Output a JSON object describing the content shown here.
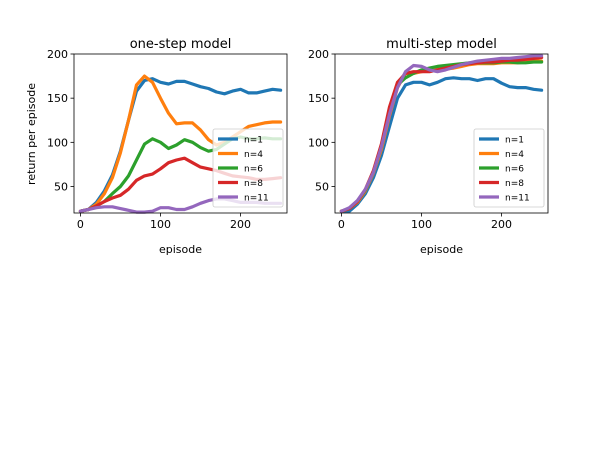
{
  "chart_data": [
    {
      "type": "line",
      "title": "one-step model",
      "xlabel": "episode",
      "ylabel": "return per episode",
      "xlim": [
        -8,
        258
      ],
      "ylim": [
        20,
        200
      ],
      "xticks": [
        0,
        100,
        200
      ],
      "yticks": [
        50,
        100,
        150,
        200
      ],
      "grid": false,
      "legend_position": "lower-right",
      "series": [
        {
          "name": "n=1",
          "color": "#1f77b4",
          "x": [
            0,
            10,
            20,
            30,
            40,
            50,
            60,
            70,
            80,
            90,
            100,
            110,
            120,
            130,
            140,
            150,
            160,
            170,
            180,
            190,
            200,
            210,
            220,
            230,
            240,
            250
          ],
          "y": [
            22,
            24,
            32,
            45,
            63,
            90,
            125,
            158,
            170,
            172,
            168,
            166,
            169,
            169,
            166,
            163,
            161,
            157,
            155,
            158,
            160,
            156,
            156,
            158,
            160,
            159
          ]
        },
        {
          "name": "n=4",
          "color": "#ff7f0e",
          "x": [
            0,
            10,
            20,
            30,
            40,
            50,
            60,
            70,
            80,
            90,
            100,
            110,
            120,
            130,
            140,
            150,
            160,
            170,
            180,
            190,
            200,
            210,
            220,
            230,
            240,
            250
          ],
          "y": [
            22,
            24,
            30,
            42,
            60,
            88,
            125,
            165,
            175,
            168,
            150,
            133,
            121,
            122,
            122,
            114,
            103,
            97,
            100,
            106,
            112,
            118,
            120,
            122,
            123,
            123
          ]
        },
        {
          "name": "n=6",
          "color": "#2ca02c",
          "x": [
            0,
            10,
            20,
            30,
            40,
            50,
            60,
            70,
            80,
            90,
            100,
            110,
            120,
            130,
            140,
            150,
            160,
            170,
            180,
            190,
            200,
            210,
            220,
            230,
            240,
            250
          ],
          "y": [
            22,
            24,
            28,
            33,
            42,
            50,
            62,
            80,
            98,
            104,
            100,
            93,
            97,
            103,
            100,
            94,
            90,
            92,
            98,
            104,
            106,
            104,
            104,
            105,
            104,
            104
          ]
        },
        {
          "name": "n=8",
          "color": "#d62728",
          "x": [
            0,
            10,
            20,
            30,
            40,
            50,
            60,
            70,
            80,
            90,
            100,
            110,
            120,
            130,
            140,
            150,
            160,
            170,
            180,
            190,
            200,
            210,
            220,
            230,
            240,
            250
          ],
          "y": [
            22,
            24,
            28,
            33,
            37,
            40,
            47,
            57,
            62,
            64,
            70,
            77,
            80,
            82,
            77,
            72,
            70,
            68,
            65,
            62,
            61,
            60,
            58,
            58,
            59,
            60
          ]
        },
        {
          "name": "n=11",
          "color": "#9467bd",
          "x": [
            0,
            10,
            20,
            30,
            40,
            50,
            60,
            70,
            80,
            90,
            100,
            110,
            120,
            130,
            140,
            150,
            160,
            170,
            180,
            190,
            200,
            210,
            220,
            230,
            240,
            250
          ],
          "y": [
            22,
            24,
            26,
            27,
            27,
            25,
            23,
            21,
            21,
            22,
            26,
            26,
            24,
            24,
            27,
            31,
            34,
            36,
            36,
            34,
            32,
            32,
            32,
            31,
            31,
            31
          ]
        }
      ]
    },
    {
      "type": "line",
      "title": "multi-step model",
      "xlabel": "episode",
      "ylabel": "",
      "xlim": [
        -8,
        258
      ],
      "ylim": [
        20,
        200
      ],
      "xticks": [
        0,
        100,
        200
      ],
      "yticks": [
        50,
        100,
        150,
        200
      ],
      "grid": false,
      "legend_position": "lower-right",
      "series": [
        {
          "name": "n=1",
          "color": "#1f77b4",
          "x": [
            0,
            10,
            20,
            30,
            40,
            50,
            60,
            70,
            80,
            90,
            100,
            110,
            120,
            130,
            140,
            150,
            160,
            170,
            180,
            190,
            200,
            210,
            220,
            230,
            240,
            250
          ],
          "y": [
            22,
            22,
            30,
            42,
            60,
            85,
            118,
            150,
            165,
            168,
            168,
            165,
            168,
            172,
            173,
            172,
            172,
            170,
            172,
            172,
            167,
            163,
            162,
            162,
            160,
            159
          ]
        },
        {
          "name": "n=4",
          "color": "#ff7f0e",
          "x": [
            0,
            10,
            20,
            30,
            40,
            50,
            60,
            70,
            80,
            90,
            100,
            110,
            120,
            130,
            140,
            150,
            160,
            170,
            180,
            190,
            200,
            210,
            220,
            230,
            240,
            250
          ],
          "y": [
            22,
            25,
            32,
            45,
            65,
            92,
            130,
            162,
            178,
            178,
            180,
            182,
            183,
            183,
            184,
            186,
            188,
            189,
            189,
            189,
            190,
            190,
            190,
            191,
            192,
            192
          ]
        },
        {
          "name": "n=6",
          "color": "#2ca02c",
          "x": [
            0,
            10,
            20,
            30,
            40,
            50,
            60,
            70,
            80,
            90,
            100,
            110,
            120,
            130,
            140,
            150,
            160,
            170,
            180,
            190,
            200,
            210,
            220,
            230,
            240,
            250
          ],
          "y": [
            22,
            25,
            33,
            46,
            66,
            95,
            135,
            165,
            173,
            178,
            182,
            184,
            186,
            187,
            188,
            189,
            190,
            190,
            190,
            190,
            191,
            191,
            190,
            190,
            191,
            191
          ]
        },
        {
          "name": "n=8",
          "color": "#d62728",
          "x": [
            0,
            10,
            20,
            30,
            40,
            50,
            60,
            70,
            80,
            90,
            100,
            110,
            120,
            130,
            140,
            150,
            160,
            170,
            180,
            190,
            200,
            210,
            220,
            230,
            240,
            250
          ],
          "y": [
            22,
            25,
            33,
            47,
            68,
            98,
            140,
            168,
            178,
            180,
            180,
            180,
            182,
            184,
            186,
            188,
            189,
            190,
            191,
            191,
            192,
            193,
            193,
            194,
            195,
            196
          ]
        },
        {
          "name": "n=11",
          "color": "#9467bd",
          "x": [
            0,
            10,
            20,
            30,
            40,
            50,
            60,
            70,
            80,
            90,
            100,
            110,
            120,
            130,
            140,
            150,
            160,
            170,
            180,
            190,
            200,
            210,
            220,
            230,
            240,
            250
          ],
          "y": [
            22,
            26,
            34,
            47,
            66,
            95,
            132,
            162,
            180,
            187,
            186,
            182,
            180,
            182,
            185,
            188,
            190,
            192,
            193,
            194,
            195,
            195,
            196,
            197,
            198,
            198
          ]
        }
      ]
    }
  ]
}
